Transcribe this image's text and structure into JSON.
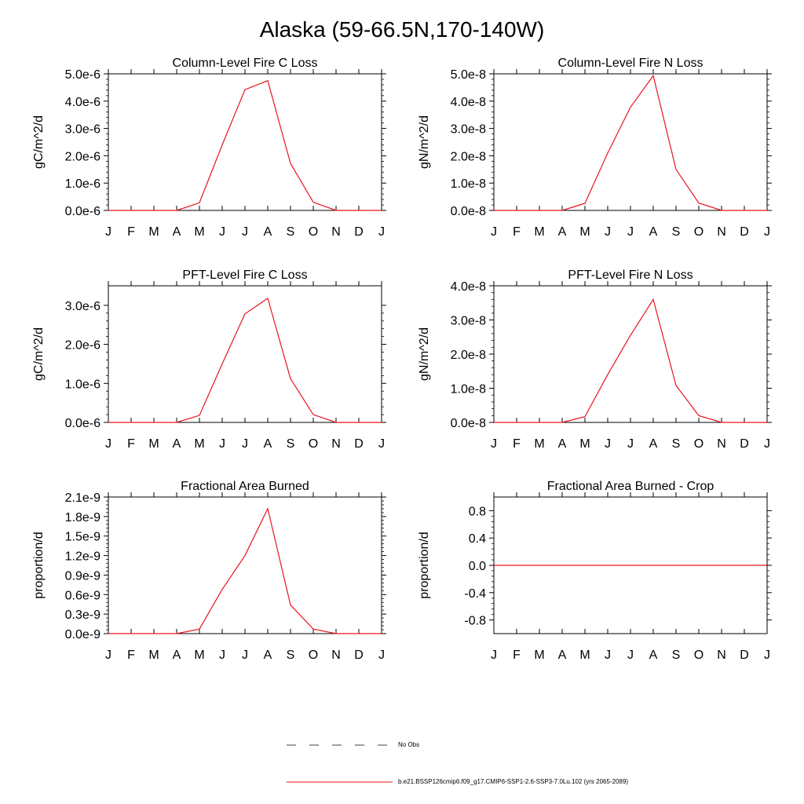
{
  "title": "Alaska (59-66.5N,170-140W)",
  "months": [
    "J",
    "F",
    "M",
    "A",
    "M",
    "J",
    "J",
    "A",
    "S",
    "O",
    "N",
    "D",
    "J"
  ],
  "line_color": "#e8141c",
  "chart_data": [
    {
      "type": "line",
      "title": "Column-Level Fire C Loss",
      "ylabel": "gC/m^2/d",
      "ylim": [
        0,
        5e-06
      ],
      "yticks": [
        0,
        1e-06,
        2e-06,
        3e-06,
        4e-06,
        5e-06
      ],
      "yticklabels": [
        "0.0e-6",
        "1.0e-6",
        "2.0e-6",
        "3.0e-6",
        "4.0e-6",
        "5.0e-6"
      ],
      "series": [
        {
          "name": "b.e21.BSSP126cmip6.f09_g17.CMIP6-SSP1-2.6-SSP3-7.0Lu.102 (yrs 2065-2089)",
          "values": [
            0,
            0,
            0,
            0,
            2.8e-07,
            2.4e-06,
            4.42e-06,
            4.75e-06,
            1.72e-06,
            3e-07,
            0,
            0,
            0
          ]
        }
      ]
    },
    {
      "type": "line",
      "title": "Column-Level Fire N Loss",
      "ylabel": "gN/m^2/d",
      "ylim": [
        0,
        5e-08
      ],
      "yticks": [
        0,
        1e-08,
        2e-08,
        3e-08,
        4e-08,
        5e-08
      ],
      "yticklabels": [
        "0.0e-8",
        "1.0e-8",
        "2.0e-8",
        "3.0e-8",
        "4.0e-8",
        "5.0e-8"
      ],
      "series": [
        {
          "name": "b.e21.BSSP126cmip6.f09_g17.CMIP6-SSP1-2.6-SSP3-7.0Lu.102 (yrs 2065-2089)",
          "values": [
            0,
            0,
            0,
            0,
            2.6e-09,
            2.1e-08,
            3.78e-08,
            4.93e-08,
            1.5e-08,
            2.7e-09,
            0,
            0,
            0
          ]
        }
      ]
    },
    {
      "type": "line",
      "title": "PFT-Level Fire C Loss",
      "ylabel": "gC/m^2/d",
      "ylim": [
        0,
        3.5e-06
      ],
      "yticks": [
        0,
        1e-06,
        2e-06,
        3e-06
      ],
      "yticklabels": [
        "0.0e-6",
        "1.0e-6",
        "2.0e-6",
        "3.0e-6"
      ],
      "series": [
        {
          "name": "b.e21.BSSP126cmip6.f09_g17.CMIP6-SSP1-2.6-SSP3-7.0Lu.102 (yrs 2065-2089)",
          "values": [
            0,
            0,
            0,
            0,
            1.8e-07,
            1.5e-06,
            2.78e-06,
            3.18e-06,
            1.12e-06,
            2e-07,
            0,
            0,
            0
          ]
        }
      ]
    },
    {
      "type": "line",
      "title": "PFT-Level Fire N Loss",
      "ylabel": "gN/m^2/d",
      "ylim": [
        0,
        4e-08
      ],
      "yticks": [
        0,
        1e-08,
        2e-08,
        3e-08,
        4e-08
      ],
      "yticklabels": [
        "0.0e-8",
        "1.0e-8",
        "2.0e-8",
        "3.0e-8",
        "4.0e-8"
      ],
      "series": [
        {
          "name": "b.e21.BSSP126cmip6.f09_g17.CMIP6-SSP1-2.6-SSP3-7.0Lu.102 (yrs 2065-2089)",
          "values": [
            0,
            0,
            0,
            0,
            1.7e-09,
            1.4e-08,
            2.55e-08,
            3.6e-08,
            1.08e-08,
            2e-09,
            0,
            0,
            0
          ]
        }
      ]
    },
    {
      "type": "line",
      "title": "Fractional Area Burned",
      "ylabel": "proportion/d",
      "ylim": [
        0,
        2.1e-09
      ],
      "yticks": [
        0,
        3e-10,
        6e-10,
        9e-10,
        1.2e-09,
        1.5e-09,
        1.8e-09,
        2.1e-09
      ],
      "yticklabels": [
        "0.0e-9",
        "0.3e-9",
        "0.6e-9",
        "0.9e-9",
        "1.2e-9",
        "1.5e-9",
        "1.8e-9",
        "2.1e-9"
      ],
      "series": [
        {
          "name": "b.e21.BSSP126cmip6.f09_g17.CMIP6-SSP1-2.6-SSP3-7.0Lu.102 (yrs 2065-2089)",
          "values": [
            0,
            0,
            0,
            0,
            7e-11,
            6.8e-10,
            1.2e-09,
            1.92e-09,
            4.4e-10,
            7e-11,
            0,
            0,
            0
          ]
        }
      ]
    },
    {
      "type": "line",
      "title": "Fractional Area Burned - Crop",
      "ylabel": "proportion/d",
      "ylim": [
        -1.0,
        1.0
      ],
      "yticks": [
        -0.8,
        -0.4,
        0.0,
        0.4,
        0.8
      ],
      "yticklabels": [
        "-0.8",
        "-0.4",
        "0.0",
        "0.4",
        "0.8"
      ],
      "series": [
        {
          "name": "b.e21.BSSP126cmip6.f09_g17.CMIP6-SSP1-2.6-SSP3-7.0Lu.102 (yrs 2065-2089)",
          "values": [
            0,
            0,
            0,
            0,
            0,
            0,
            0,
            0,
            0,
            0,
            0,
            0,
            0
          ]
        }
      ]
    }
  ],
  "legend": {
    "obs_label": "No Obs",
    "model_label": "b.e21.BSSP126cmip6.f09_g17.CMIP6-SSP1-2.6-SSP3-7.0Lu.102 (yrs 2065-2089)"
  }
}
